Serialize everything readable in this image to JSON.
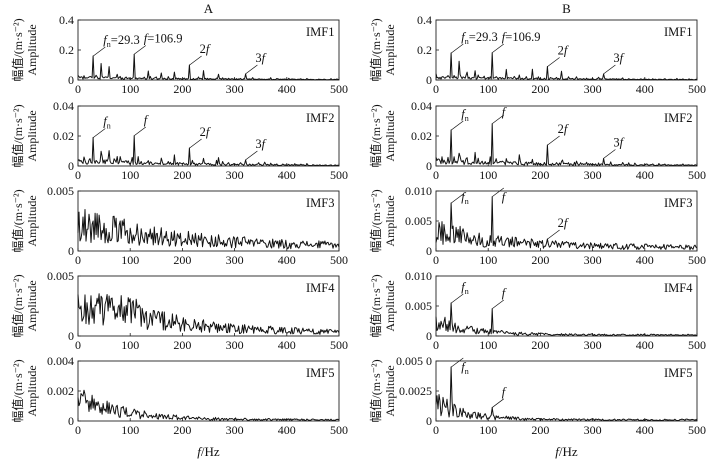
{
  "chart_data": {
    "type": "line",
    "columns": [
      "A",
      "B"
    ],
    "xlabel": "f/Hz",
    "ylabel_cn": "幅值/(m·s⁻²)",
    "ylabel_en": "Amplitude",
    "xlim": [
      0,
      500
    ],
    "xticks": [
      "0",
      "100",
      "200",
      "300",
      "400",
      "500"
    ],
    "panels": [
      {
        "column": "A",
        "imf": "IMF1",
        "ylim": [
          0,
          0.4
        ],
        "yticks": [
          "0",
          "0.2",
          "0.4"
        ],
        "annotations": [
          {
            "label": "fn=29.3",
            "x": 29.3,
            "y": 0.16
          },
          {
            "label": "f=106.9",
            "x": 106.9,
            "y": 0.17
          },
          {
            "label": "2f",
            "x": 213.8,
            "y": 0.1
          },
          {
            "label": "3f",
            "x": 320.7,
            "y": 0.04
          }
        ]
      },
      {
        "column": "A",
        "imf": "IMF2",
        "ylim": [
          0,
          0.04
        ],
        "yticks": [
          "0",
          "0.02",
          "0.04"
        ],
        "annotations": [
          {
            "label": "fn",
            "x": 29.3,
            "y": 0.019
          },
          {
            "label": "f",
            "x": 106.9,
            "y": 0.02
          },
          {
            "label": "2f",
            "x": 213.8,
            "y": 0.012
          },
          {
            "label": "3f",
            "x": 320.7,
            "y": 0.004
          }
        ]
      },
      {
        "column": "A",
        "imf": "IMF3",
        "ylim": [
          0,
          0.005
        ],
        "yticks": [
          "0",
          "0.005"
        ],
        "annotations": []
      },
      {
        "column": "A",
        "imf": "IMF4",
        "ylim": [
          0,
          0.005
        ],
        "yticks": [
          "0",
          "0.005"
        ],
        "annotations": []
      },
      {
        "column": "A",
        "imf": "IMF5",
        "ylim": [
          0,
          0.004
        ],
        "yticks": [
          "0",
          "0.002",
          "0.004"
        ],
        "annotations": []
      },
      {
        "column": "B",
        "imf": "IMF1",
        "ylim": [
          0,
          0.4
        ],
        "yticks": [
          "0",
          "0.2",
          "0.4"
        ],
        "annotations": [
          {
            "label": "fn=29.3",
            "x": 29.3,
            "y": 0.18
          },
          {
            "label": "f=106.9",
            "x": 106.9,
            "y": 0.18
          },
          {
            "label": "2f",
            "x": 213.8,
            "y": 0.09
          },
          {
            "label": "3f",
            "x": 320.7,
            "y": 0.04
          }
        ]
      },
      {
        "column": "B",
        "imf": "IMF2",
        "ylim": [
          0,
          0.04
        ],
        "yticks": [
          "0",
          "0.02",
          "0.04"
        ],
        "annotations": [
          {
            "label": "fn",
            "x": 29.3,
            "y": 0.024
          },
          {
            "label": "f",
            "x": 106.9,
            "y": 0.028
          },
          {
            "label": "2f",
            "x": 213.8,
            "y": 0.014
          },
          {
            "label": "3f",
            "x": 320.7,
            "y": 0.005
          }
        ]
      },
      {
        "column": "B",
        "imf": "IMF3",
        "ylim": [
          0,
          0.01
        ],
        "yticks": [
          "0",
          "0.005",
          "0.010"
        ],
        "annotations": [
          {
            "label": "fn",
            "x": 29.3,
            "y": 0.008
          },
          {
            "label": "f",
            "x": 106.9,
            "y": 0.009
          },
          {
            "label": "2f",
            "x": 213.8,
            "y": 0.002
          }
        ]
      },
      {
        "column": "B",
        "imf": "IMF4",
        "ylim": [
          0,
          0.01
        ],
        "yticks": [
          "0",
          "0.005",
          "0.010"
        ],
        "annotations": [
          {
            "label": "fn",
            "x": 29.3,
            "y": 0.0055
          },
          {
            "label": "f",
            "x": 106.9,
            "y": 0.0045
          }
        ]
      },
      {
        "column": "B",
        "imf": "IMF5",
        "ylim": [
          0,
          0.005
        ],
        "yticks": [
          "0",
          "0.0025",
          "0.005 0"
        ],
        "annotations": [
          {
            "label": "fn",
            "x": 29.3,
            "y": 0.0045
          },
          {
            "label": "f",
            "x": 106.9,
            "y": 0.0011
          }
        ]
      }
    ]
  }
}
